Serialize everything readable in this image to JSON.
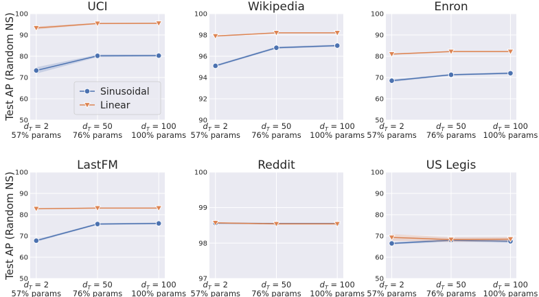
{
  "figure": {
    "ylabel": "Test AP (Random NS)"
  },
  "colors": {
    "sinusoidal": "#4c72b0",
    "linear": "#dd8452",
    "panel_bg": "#eaeaf2",
    "grid": "#ffffff"
  },
  "legend": {
    "items": [
      {
        "label": "Sinusoidal",
        "marker": "circle",
        "color": "#4c72b0"
      },
      {
        "label": "Linear",
        "marker": "triangle-down",
        "color": "#dd8452"
      }
    ]
  },
  "chart_data": [
    {
      "type": "line",
      "title": "UCI",
      "categories": [
        [
          "d_T = 2",
          "57% params"
        ],
        [
          "d_T = 50",
          "76% params"
        ],
        [
          "d_T = 100",
          "100% params"
        ]
      ],
      "ylim": [
        50,
        100
      ],
      "yticks": [
        50,
        60,
        70,
        80,
        90,
        100
      ],
      "grid": true,
      "legend": "lower right",
      "series": [
        {
          "name": "Sinusoidal",
          "values": [
            73.3,
            80.2,
            80.3
          ],
          "band": [
            [
              71.8,
              74.8
            ],
            [
              79.6,
              80.8
            ],
            [
              79.8,
              80.8
            ]
          ]
        },
        {
          "name": "Linear",
          "values": [
            93.3,
            95.4,
            95.5
          ],
          "band": [
            [
              92.6,
              94.0
            ],
            [
              95.1,
              95.7
            ],
            [
              95.2,
              95.8
            ]
          ]
        }
      ]
    },
    {
      "type": "line",
      "title": "Wikipedia",
      "categories": [
        [
          "d_T = 2",
          "57% params"
        ],
        [
          "d_T = 50",
          "76% params"
        ],
        [
          "d_T = 100",
          "100% params"
        ]
      ],
      "ylim": [
        90,
        100
      ],
      "yticks": [
        90,
        92,
        94,
        96,
        98,
        100
      ],
      "grid": true,
      "series": [
        {
          "name": "Sinusoidal",
          "values": [
            95.1,
            96.8,
            97.0
          ],
          "band": [
            [
              95.0,
              95.2
            ],
            [
              96.7,
              96.9
            ],
            [
              96.9,
              97.1
            ]
          ]
        },
        {
          "name": "Linear",
          "values": [
            97.9,
            98.2,
            98.2
          ],
          "band": [
            [
              97.85,
              97.95
            ],
            [
              98.15,
              98.25
            ],
            [
              98.15,
              98.25
            ]
          ]
        }
      ]
    },
    {
      "type": "line",
      "title": "Enron",
      "categories": [
        [
          "d_T = 2",
          "57% params"
        ],
        [
          "d_T = 50",
          "76% params"
        ],
        [
          "d_T = 100",
          "100% params"
        ]
      ],
      "ylim": [
        50,
        100
      ],
      "yticks": [
        50,
        60,
        70,
        80,
        90,
        100
      ],
      "grid": true,
      "series": [
        {
          "name": "Sinusoidal",
          "values": [
            68.5,
            71.3,
            72.0
          ],
          "band": [
            [
              67.9,
              69.1
            ],
            [
              70.9,
              71.7
            ],
            [
              71.5,
              72.5
            ]
          ]
        },
        {
          "name": "Linear",
          "values": [
            81.0,
            82.2,
            82.2
          ],
          "band": [
            [
              80.7,
              81.3
            ],
            [
              81.9,
              82.5
            ],
            [
              81.9,
              82.5
            ]
          ]
        }
      ]
    },
    {
      "type": "line",
      "title": "LastFM",
      "categories": [
        [
          "d_T = 2",
          "57% params"
        ],
        [
          "d_T = 50",
          "76% params"
        ],
        [
          "d_T = 100",
          "100% params"
        ]
      ],
      "ylim": [
        50,
        100
      ],
      "yticks": [
        50,
        60,
        70,
        80,
        90,
        100
      ],
      "grid": true,
      "series": [
        {
          "name": "Sinusoidal",
          "values": [
            67.8,
            75.6,
            75.9
          ],
          "band": [
            [
              67.2,
              68.4
            ],
            [
              75.2,
              76.0
            ],
            [
              75.5,
              76.3
            ]
          ]
        },
        {
          "name": "Linear",
          "values": [
            82.8,
            83.1,
            83.1
          ],
          "band": [
            [
              82.6,
              83.0
            ],
            [
              82.9,
              83.3
            ],
            [
              82.9,
              83.3
            ]
          ]
        }
      ]
    },
    {
      "type": "line",
      "title": "Reddit",
      "categories": [
        [
          "d_T = 2",
          "57% params"
        ],
        [
          "d_T = 50",
          "76% params"
        ],
        [
          "d_T = 100",
          "100% params"
        ]
      ],
      "ylim": [
        97,
        100
      ],
      "yticks": [
        97,
        98,
        99,
        100
      ],
      "grid": true,
      "series": [
        {
          "name": "Sinusoidal",
          "values": [
            98.56,
            98.55,
            98.55
          ],
          "band": [
            [
              98.54,
              98.58
            ],
            [
              98.53,
              98.57
            ],
            [
              98.53,
              98.57
            ]
          ]
        },
        {
          "name": "Linear",
          "values": [
            98.57,
            98.54,
            98.54
          ],
          "band": [
            [
              98.55,
              98.59
            ],
            [
              98.52,
              98.56
            ],
            [
              98.52,
              98.56
            ]
          ]
        }
      ]
    },
    {
      "type": "line",
      "title": "US Legis",
      "categories": [
        [
          "d_T = 2",
          "57% params"
        ],
        [
          "d_T = 50",
          "76% params"
        ],
        [
          "d_T = 100",
          "100% params"
        ]
      ],
      "ylim": [
        50,
        100
      ],
      "yticks": [
        50,
        60,
        70,
        80,
        90,
        100
      ],
      "grid": true,
      "series": [
        {
          "name": "Sinusoidal",
          "values": [
            66.5,
            68.0,
            67.5
          ],
          "band": [
            [
              66.0,
              67.0
            ],
            [
              67.3,
              68.7
            ],
            [
              66.8,
              68.2
            ]
          ]
        },
        {
          "name": "Linear",
          "values": [
            69.3,
            68.3,
            68.5
          ],
          "band": [
            [
              67.8,
              70.8
            ],
            [
              67.2,
              69.4
            ],
            [
              67.5,
              69.5
            ]
          ]
        }
      ]
    }
  ]
}
